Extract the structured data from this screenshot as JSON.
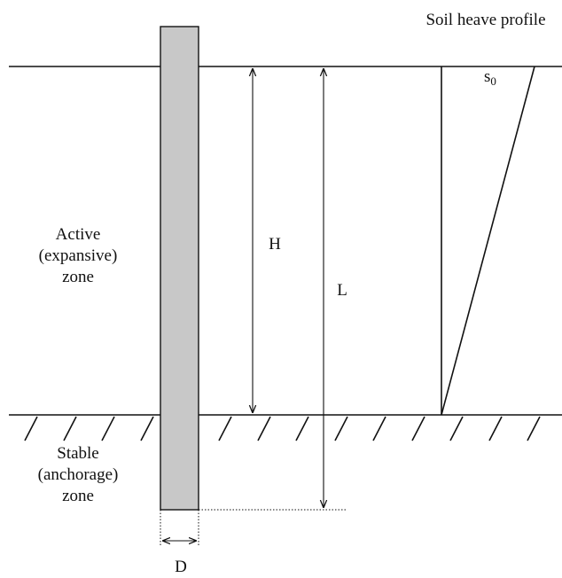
{
  "profile": {
    "title": "Soil heave profile",
    "symbol": "s",
    "subscript": "0"
  },
  "zones": {
    "active": [
      "Active",
      "(expansive)",
      "zone"
    ],
    "stable": [
      "Stable",
      "(anchorage)",
      "zone"
    ]
  },
  "dimensions": {
    "H": "H",
    "L": "L",
    "D": "D"
  }
}
